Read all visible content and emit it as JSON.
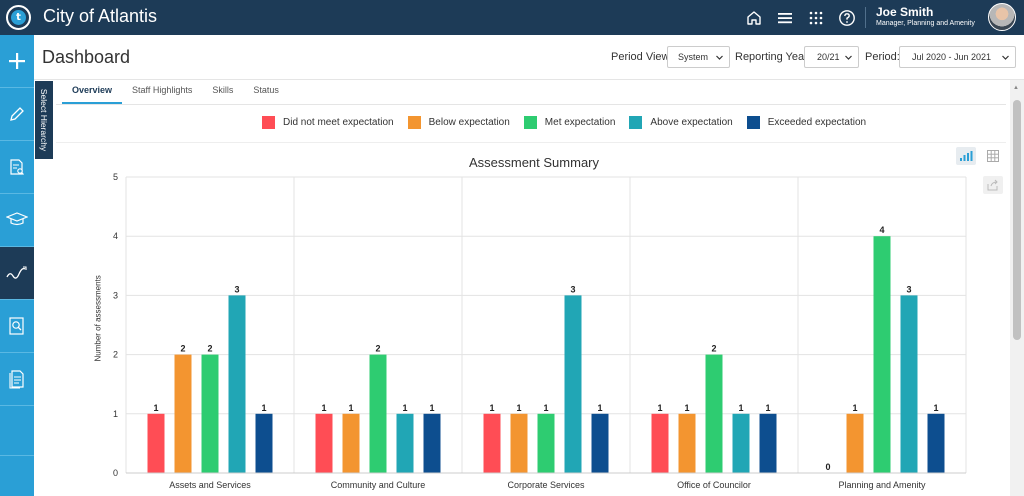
{
  "app": {
    "title": "City of Atlantis",
    "logo_letter": "t"
  },
  "user": {
    "name": "Joe Smith",
    "role": "Manager, Planning and Amenity"
  },
  "topbar_icons": [
    "home-icon",
    "menu-icon",
    "apps-grid-icon",
    "help-icon"
  ],
  "sidebar_icons": [
    "plus-icon",
    "pencil-icon",
    "document-search-icon",
    "graduation-cap-icon",
    "trend-icon",
    "report-search-icon",
    "document-list-icon"
  ],
  "page": {
    "title": "Dashboard"
  },
  "filters": {
    "period_view_label": "Period View:",
    "period_view_value": "System",
    "reporting_year_label": "Reporting Year:",
    "reporting_year_value": "20/21",
    "period_label": "Period:",
    "period_value": "Jul 2020 - Jun 2021"
  },
  "hierarchy_tab": {
    "label": "Select Hierarchy"
  },
  "tabs": [
    {
      "label": "Overview",
      "active": true
    },
    {
      "label": "Staff Highlights",
      "active": false
    },
    {
      "label": "Skills",
      "active": false
    },
    {
      "label": "Status",
      "active": false
    }
  ],
  "colors": {
    "topbar": "#1d3b57",
    "sidebar": "#2a9fd6",
    "accent": "#2a9fd6"
  },
  "chart_data": {
    "type": "bar",
    "title": "Assessment Summary",
    "xlabel": "",
    "ylabel": "Number of assessments",
    "ylim": [
      0,
      5
    ],
    "yticks": [
      "0",
      "1",
      "2",
      "3",
      "4",
      "5"
    ],
    "grid": true,
    "legend_position": "top",
    "categories": [
      "Assets and Services",
      "Community and Culture",
      "Corporate Services",
      "Office of Councilor",
      "Planning and Amenity"
    ],
    "series": [
      {
        "name": "Did not meet expectation",
        "color": "#ff4d55",
        "values": [
          1,
          1,
          1,
          1,
          0
        ]
      },
      {
        "name": "Below expectation",
        "color": "#f39530",
        "values": [
          2,
          1,
          1,
          1,
          1
        ]
      },
      {
        "name": "Met expectation",
        "color": "#2ecc71",
        "values": [
          2,
          2,
          1,
          2,
          4
        ]
      },
      {
        "name": "Above expectation",
        "color": "#21a6b5",
        "values": [
          3,
          1,
          3,
          1,
          3
        ]
      },
      {
        "name": "Exceeded expectation",
        "color": "#0d4e8f",
        "values": [
          1,
          1,
          1,
          1,
          1
        ]
      }
    ]
  }
}
